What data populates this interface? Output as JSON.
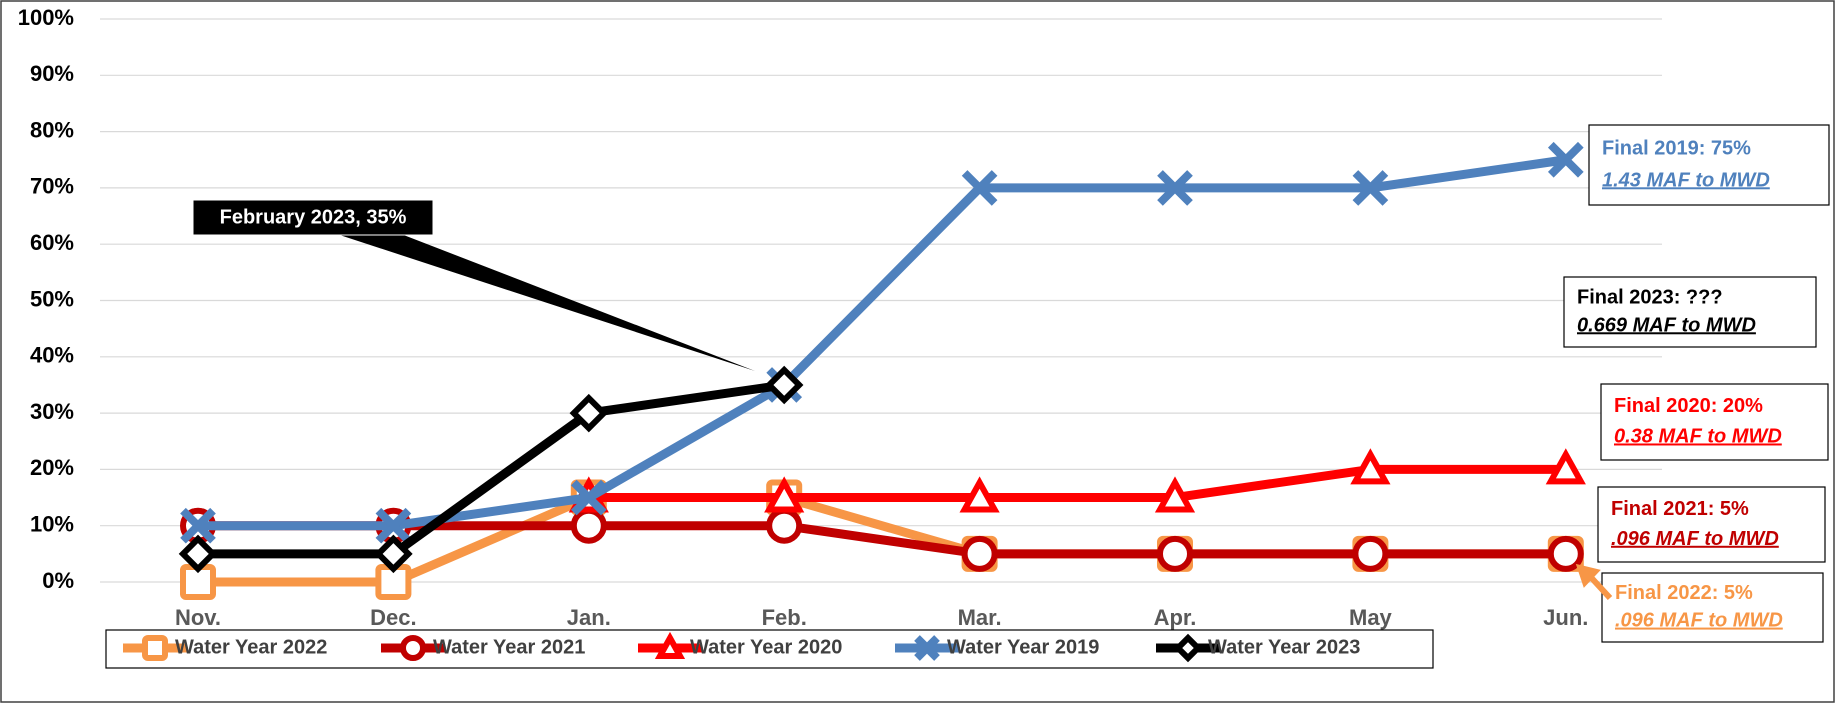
{
  "chart_data": {
    "type": "line",
    "categories": [
      "Nov.",
      "Dec.",
      "Jan.",
      "Feb.",
      "Mar.",
      "Apr.",
      "May",
      "Jun."
    ],
    "ylim": [
      0,
      100
    ],
    "yticks": [
      {
        "value": 0,
        "label": "0%"
      },
      {
        "value": 10,
        "label": "10%"
      },
      {
        "value": 20,
        "label": "20%"
      },
      {
        "value": 30,
        "label": "30%"
      },
      {
        "value": 40,
        "label": "40%"
      },
      {
        "value": 50,
        "label": "50%"
      },
      {
        "value": 60,
        "label": "60%"
      },
      {
        "value": 70,
        "label": "70%"
      },
      {
        "value": 80,
        "label": "80%"
      },
      {
        "value": 90,
        "label": "90%"
      },
      {
        "value": 100,
        "label": "100%"
      }
    ],
    "grid": true,
    "series": [
      {
        "name": "Water Year 2022",
        "color": "#f79646",
        "marker": "square",
        "values": [
          0,
          0,
          15,
          15,
          5,
          5,
          5,
          5
        ]
      },
      {
        "name": "Water Year 2021",
        "color": "#c00000",
        "marker": "circle",
        "values": [
          10,
          10,
          10,
          10,
          5,
          5,
          5,
          5
        ]
      },
      {
        "name": "Water Year 2020",
        "color": "#ff0000",
        "marker": "triangle",
        "values": [
          null,
          null,
          15,
          15,
          15,
          15,
          20,
          20
        ]
      },
      {
        "name": "Water Year 2019",
        "color": "#4f81bd",
        "marker": "x",
        "values": [
          10,
          10,
          15,
          35,
          70,
          70,
          70,
          75
        ]
      },
      {
        "name": "Water Year 2023",
        "color": "#000000",
        "marker": "diamond",
        "values": [
          5,
          5,
          30,
          35,
          null,
          null,
          null,
          null
        ]
      }
    ],
    "callout": "February 2023, 35%",
    "annotations": [
      {
        "title": "Final 2019: 75%",
        "subtitle": "1.43 MAF to MWD",
        "color": "#4f81bd"
      },
      {
        "title": "Final 2023: ???",
        "subtitle": "0.669 MAF to MWD",
        "color": "#000000"
      },
      {
        "title": "Final 2020:  20%",
        "subtitle": "0.38 MAF to MWD",
        "color": "#ff0000"
      },
      {
        "title": "Final  2021:  5%",
        "subtitle": ".096 MAF to MWD",
        "color": "#c00000"
      },
      {
        "title": "Final  2022:  5%",
        "subtitle": ".096 MAF to MWD",
        "color": "#f79646"
      }
    ]
  }
}
